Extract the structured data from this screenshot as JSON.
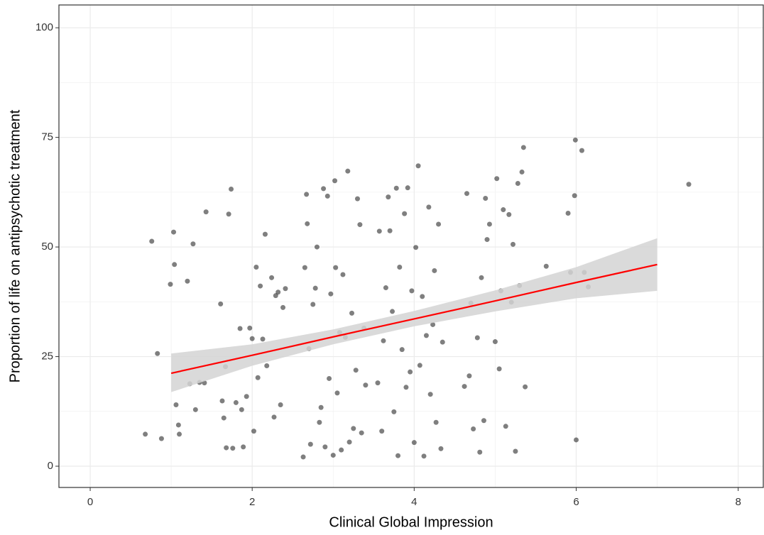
{
  "chart_data": {
    "type": "scatter",
    "x_label": "Clinical Global Impression",
    "y_label": "Proportion of life on antipsychotic treatment",
    "xlim": [
      -0.386,
      8.31
    ],
    "ylim": [
      -4.85,
      105.2
    ],
    "xticks": [
      0,
      2,
      4,
      6,
      8
    ],
    "yticks": [
      0,
      25,
      50,
      75,
      100
    ],
    "xminor": [
      1,
      3,
      5,
      7
    ],
    "yminor": [
      12.5,
      37.5,
      62.5,
      87.5
    ],
    "grid": true,
    "points": {
      "color": "#000000",
      "opacity": 0.5,
      "x": [
        0.68,
        0.76,
        0.83,
        0.88,
        0.99,
        1.03,
        1.04,
        1.06,
        1.09,
        1.1,
        1.2,
        1.23,
        1.27,
        1.3,
        1.35,
        1.41,
        1.43,
        1.61,
        1.63,
        1.65,
        1.67,
        1.68,
        1.71,
        1.74,
        1.76,
        1.8,
        1.85,
        1.87,
        1.89,
        1.93,
        1.97,
        2.0,
        2.02,
        2.05,
        2.07,
        2.1,
        2.13,
        2.16,
        2.18,
        2.24,
        2.27,
        2.29,
        2.32,
        2.35,
        2.38,
        2.41,
        2.63,
        2.65,
        2.67,
        2.68,
        2.7,
        2.72,
        2.75,
        2.78,
        2.8,
        2.83,
        2.85,
        2.88,
        2.9,
        2.93,
        2.95,
        2.97,
        3.0,
        3.02,
        3.03,
        3.05,
        3.08,
        3.1,
        3.12,
        3.15,
        3.18,
        3.2,
        3.23,
        3.25,
        3.28,
        3.3,
        3.33,
        3.35,
        3.38,
        3.4,
        3.55,
        3.57,
        3.6,
        3.62,
        3.65,
        3.68,
        3.7,
        3.73,
        3.75,
        3.78,
        3.8,
        3.82,
        3.85,
        3.88,
        3.9,
        3.92,
        3.95,
        3.97,
        4.0,
        4.02,
        4.05,
        4.07,
        4.1,
        4.12,
        4.15,
        4.18,
        4.2,
        4.23,
        4.25,
        4.27,
        4.3,
        4.33,
        4.35,
        4.62,
        4.65,
        4.68,
        4.7,
        4.73,
        4.78,
        4.81,
        4.83,
        4.86,
        4.88,
        4.9,
        4.93,
        5.0,
        5.02,
        5.05,
        5.07,
        5.1,
        5.13,
        5.17,
        5.2,
        5.22,
        5.25,
        5.28,
        5.3,
        5.33,
        5.35,
        5.37,
        5.63,
        5.9,
        5.93,
        5.98,
        5.99,
        6.0,
        6.07,
        6.1,
        6.15,
        7.39
      ],
      "y": [
        7.3,
        51.3,
        25.7,
        6.3,
        41.5,
        53.4,
        46,
        14,
        9.4,
        7.3,
        42.2,
        18.8,
        50.7,
        12.9,
        19.1,
        19,
        58,
        37,
        14.9,
        11,
        22.7,
        4.2,
        57.5,
        63.2,
        4.1,
        14.5,
        31.4,
        12.9,
        4.4,
        15.9,
        31.5,
        29.1,
        8,
        45.4,
        20.2,
        41.1,
        29,
        52.9,
        22.9,
        43,
        11.2,
        38.9,
        39.7,
        14,
        36.2,
        40.5,
        2.1,
        45.3,
        62,
        55.3,
        26.8,
        5,
        36.9,
        40.6,
        50,
        10,
        13.4,
        63.3,
        4.4,
        61.6,
        20,
        39.3,
        2.5,
        65.1,
        45.3,
        16.7,
        30.5,
        3.7,
        43.7,
        29.4,
        67.3,
        5.5,
        34.9,
        8.6,
        21.9,
        61,
        55.1,
        7.6,
        31.5,
        18.5,
        19,
        53.6,
        8,
        28.6,
        40.7,
        61.4,
        53.7,
        35.3,
        12.4,
        63.4,
        2.4,
        45.4,
        26.6,
        57.6,
        18,
        63.5,
        21.5,
        40,
        5.4,
        49.9,
        68.5,
        23,
        38.7,
        2.3,
        29.8,
        59.1,
        16.4,
        32.3,
        44.6,
        10,
        55.2,
        4,
        28.3,
        18.2,
        62.2,
        20.6,
        37.2,
        8.5,
        29.3,
        3.2,
        43,
        10.4,
        61.1,
        51.7,
        55.2,
        28.4,
        65.6,
        22.2,
        40,
        58.5,
        9.1,
        57.4,
        37.4,
        50.6,
        3.4,
        64.5,
        41.2,
        67.1,
        72.7,
        18.1,
        45.6,
        57.7,
        44.2,
        61.7,
        74.4,
        6,
        72,
        44.2,
        40.9,
        64.3
      ]
    },
    "fit": {
      "color": "#ff0000",
      "band_color": "#d3d3d3",
      "x": [
        1,
        2,
        3,
        4,
        5,
        6,
        7
      ],
      "y": [
        21.2,
        25.3,
        29.5,
        33.6,
        37.7,
        41.9,
        46.0
      ],
      "lower": [
        16.9,
        22.9,
        27.8,
        31.9,
        35.3,
        38.3,
        40.0
      ],
      "upper": [
        25.7,
        27.8,
        31.2,
        35.4,
        40.1,
        45.4,
        52.0
      ]
    }
  }
}
